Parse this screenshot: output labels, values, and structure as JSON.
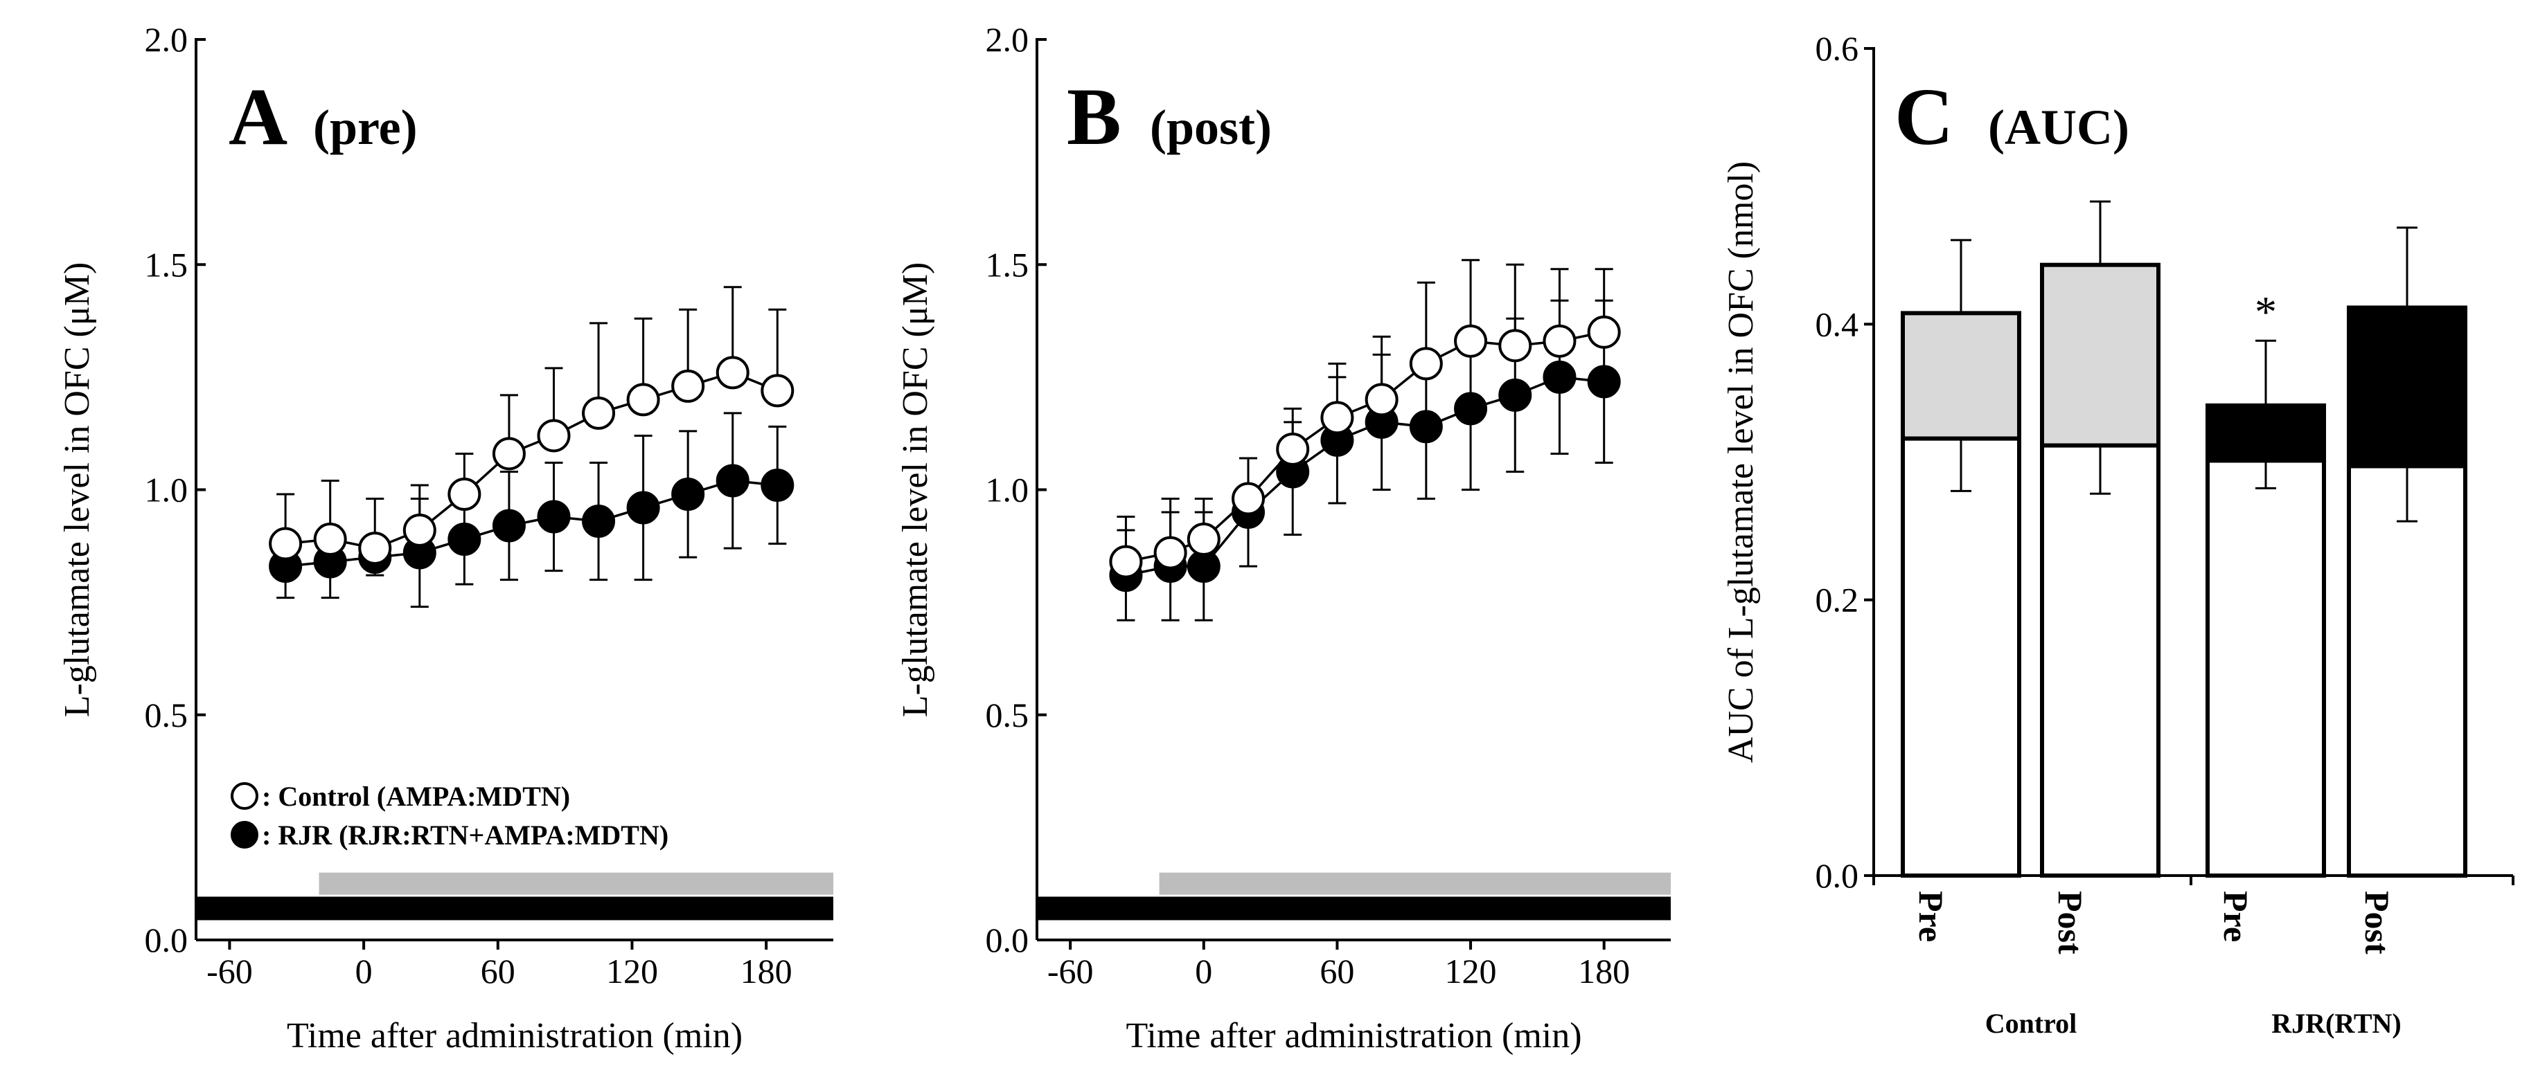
{
  "chart_data": [
    {
      "type": "line",
      "panel_letter": "A",
      "panel_sub": "(pre)",
      "xlabel": "Time after administration (min)",
      "ylabel": "L-glutamate level in OFC (μM)",
      "xlim": [
        -75,
        210
      ],
      "ylim": [
        0,
        2.0
      ],
      "x_ticks": [
        -60,
        0,
        60,
        120,
        180
      ],
      "x_tick_labels": [
        "-60",
        "0",
        "60",
        "120",
        "180"
      ],
      "y_ticks": [
        0,
        0.5,
        1.0,
        1.5,
        2.0
      ],
      "y_tick_labels": [
        "0.0",
        "0.5",
        "1.0",
        "1.5",
        "2.0"
      ],
      "x": [
        -35,
        -15,
        5,
        25,
        45,
        65,
        85,
        105,
        125,
        145,
        165,
        185
      ],
      "series": [
        {
          "name": ": Control (AMPA:MDTN)",
          "marker": "open-circle",
          "values": [
            0.88,
            0.89,
            0.87,
            0.91,
            0.99,
            1.08,
            1.12,
            1.17,
            1.2,
            1.23,
            1.26,
            1.22
          ],
          "error": [
            0.11,
            0.13,
            0.11,
            0.1,
            0.09,
            0.13,
            0.15,
            0.2,
            0.18,
            0.17,
            0.19,
            0.18
          ]
        },
        {
          "name": ": RJR (RJR:RTN+AMPA:MDTN)",
          "marker": "filled-circle",
          "values": [
            0.83,
            0.84,
            0.85,
            0.86,
            0.89,
            0.92,
            0.94,
            0.93,
            0.96,
            0.99,
            1.02,
            1.01
          ],
          "error": [
            0.07,
            0.08,
            0.04,
            0.12,
            0.1,
            0.12,
            0.12,
            0.13,
            0.16,
            0.14,
            0.15,
            0.13
          ]
        }
      ],
      "bars": [
        {
          "color": "#000000",
          "x_start": -75,
          "x_end": 210,
          "level": 0.07
        },
        {
          "color": "#bdbdbd",
          "x_start": -20,
          "x_end": 210,
          "level": 0.125
        }
      ],
      "legend_placement": "bottom-left"
    },
    {
      "type": "line",
      "panel_letter": "B",
      "panel_sub": "(post)",
      "xlabel": "Time after administration (min)",
      "ylabel": "L-glutamate level in OFC (μM)",
      "xlim": [
        -75,
        210
      ],
      "ylim": [
        0,
        2.0
      ],
      "x_ticks": [
        -60,
        0,
        60,
        120,
        180
      ],
      "x_tick_labels": [
        "-60",
        "0",
        "60",
        "120",
        "180"
      ],
      "y_ticks": [
        0,
        0.5,
        1.0,
        1.5,
        2.0
      ],
      "y_tick_labels": [
        "0.0",
        "0.5",
        "1.0",
        "1.5",
        "2.0"
      ],
      "x": [
        -35,
        -15,
        0,
        20,
        40,
        60,
        80,
        100,
        120,
        140,
        160,
        180
      ],
      "series": [
        {
          "name": "Control",
          "marker": "open-circle",
          "values": [
            0.84,
            0.86,
            0.89,
            0.98,
            1.09,
            1.16,
            1.2,
            1.28,
            1.33,
            1.32,
            1.33,
            1.35
          ],
          "error": [
            0.1,
            0.12,
            0.09,
            0.09,
            0.06,
            0.12,
            0.14,
            0.18,
            0.18,
            0.18,
            0.16,
            0.14
          ]
        },
        {
          "name": "RJR",
          "marker": "filled-circle",
          "values": [
            0.81,
            0.83,
            0.83,
            0.95,
            1.04,
            1.11,
            1.15,
            1.14,
            1.18,
            1.21,
            1.25,
            1.24
          ],
          "error": [
            0.1,
            0.12,
            0.12,
            0.12,
            0.14,
            0.14,
            0.15,
            0.16,
            0.18,
            0.17,
            0.17,
            0.18
          ]
        }
      ],
      "bars": [
        {
          "color": "#000000",
          "x_start": -75,
          "x_end": 210,
          "level": 0.07
        },
        {
          "color": "#bdbdbd",
          "x_start": -20,
          "x_end": 210,
          "level": 0.125
        }
      ]
    },
    {
      "type": "bar",
      "panel_letter": "C",
      "panel_sub": "(AUC)",
      "ylabel": "AUC of L-glutamate level in OFC (nmol)",
      "ylim": [
        0,
        0.6
      ],
      "y_ticks": [
        0,
        0.2,
        0.4,
        0.6
      ],
      "y_tick_labels": [
        "0.0",
        "0.2",
        "0.4",
        "0.6"
      ],
      "categories": [
        "Pre",
        "Post",
        "Pre",
        "Post"
      ],
      "groups": [
        "Control",
        "RJR(RTN)"
      ],
      "stacked": true,
      "bars": [
        {
          "group": "Control",
          "label": "Pre",
          "lower": 0.317,
          "lower_error": 0.038,
          "total": 0.408,
          "total_error": 0.053,
          "upper_color": "#d9d9d9"
        },
        {
          "group": "Control",
          "label": "Post",
          "lower": 0.312,
          "lower_error": 0.035,
          "total": 0.443,
          "total_error": 0.046,
          "upper_color": "#d9d9d9"
        },
        {
          "group": "RJR(RTN)",
          "label": "Pre",
          "lower": 0.301,
          "lower_error": 0.02,
          "total": 0.341,
          "total_error": 0.047,
          "upper_color": "#000000",
          "significance": "*"
        },
        {
          "group": "RJR(RTN)",
          "label": "Post",
          "lower": 0.297,
          "lower_error": 0.04,
          "total": 0.412,
          "total_error": 0.058,
          "upper_color": "#000000"
        }
      ]
    }
  ]
}
